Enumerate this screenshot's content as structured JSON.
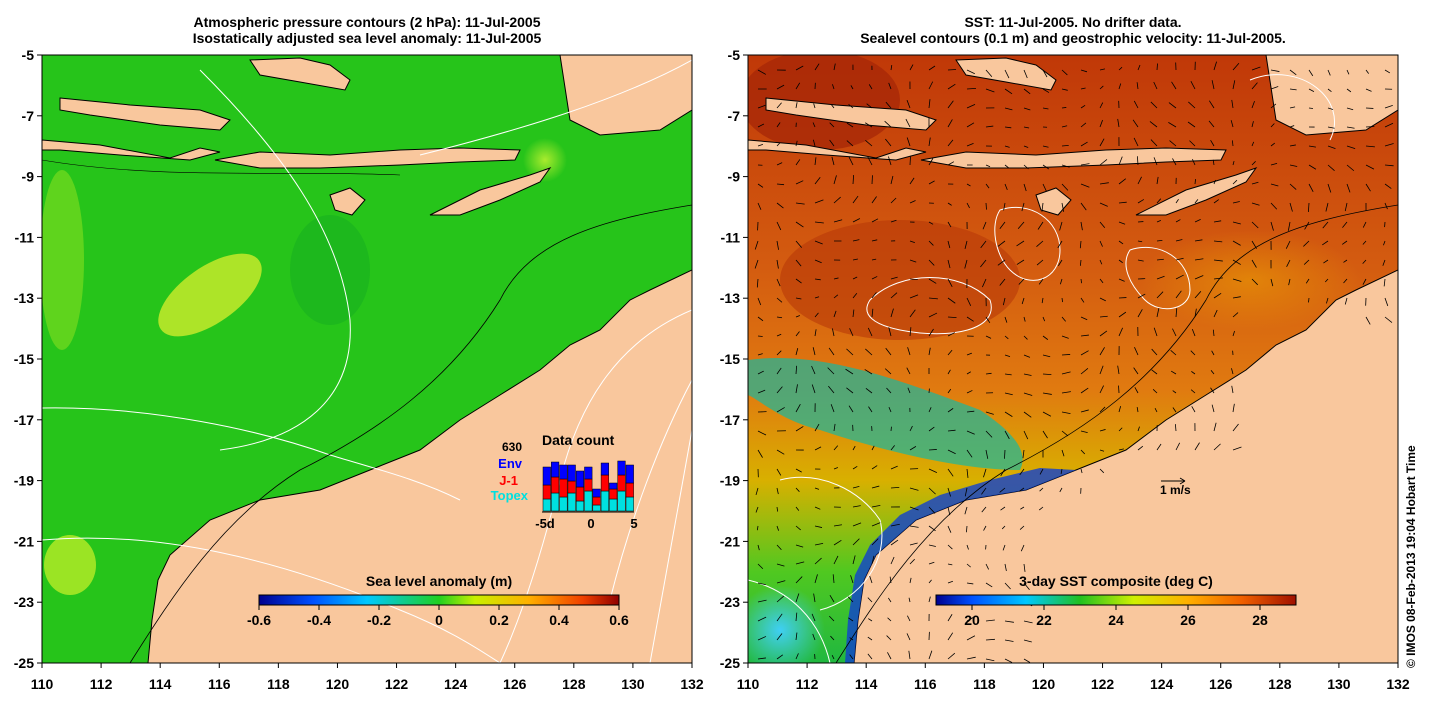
{
  "left_map": {
    "title_line1": "Atmospheric pressure contours (2 hPa): 11-Jul-2005",
    "title_line2": "Isostatically adjusted sea level anomaly: 11-Jul-2005",
    "colorbar": {
      "title": "Sea level anomaly (m)",
      "ticks": [
        "-0.6",
        "-0.4",
        "-0.2",
        "0",
        "0.2",
        "0.4",
        "0.6"
      ],
      "range": [
        -0.6,
        0.6
      ]
    },
    "data_count": {
      "title": "Data count",
      "total": "630",
      "labels": {
        "env": "Env",
        "j1": "J-1",
        "topex": "Topex"
      },
      "xticks": [
        "-5d",
        "0",
        "5"
      ],
      "colors": {
        "env": "#0000ff",
        "j1": "#ff0000",
        "topex": "#00e0e0"
      }
    }
  },
  "right_map": {
    "title_line1": "SST: 11-Jul-2005. No drifter data.",
    "title_line2": "Sealevel contours (0.1 m) and geostrophic velocity: 11-Jul-2005.",
    "colorbar": {
      "title": "3-day SST composite (deg C)",
      "ticks": [
        "20",
        "22",
        "24",
        "26",
        "28"
      ],
      "range": [
        19,
        29
      ]
    },
    "scale_label": "1 m/s"
  },
  "axes": {
    "x_ticks": [
      "110",
      "112",
      "114",
      "116",
      "118",
      "120",
      "122",
      "124",
      "126",
      "128",
      "130",
      "132"
    ],
    "y_ticks": [
      "-5",
      "-7",
      "-9",
      "-11",
      "-13",
      "-15",
      "-17",
      "-19",
      "-21",
      "-23",
      "-25"
    ],
    "lon_range": [
      110,
      132
    ],
    "lat_range": [
      -25,
      -5
    ]
  },
  "credit": "© IMOS 08-Feb-2013 19:04 Hobart Time",
  "colors": {
    "land": "#f9c79d",
    "ocean_left": "#26c41a",
    "ocean_right": "#d05a10",
    "coast": "#000000"
  }
}
